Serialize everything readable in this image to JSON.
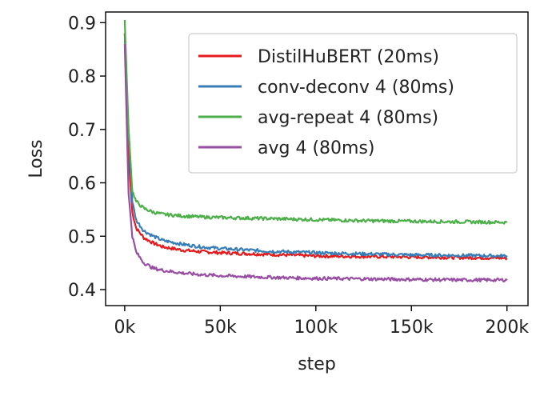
{
  "chart_data": {
    "type": "line",
    "title": "",
    "xlabel": "step",
    "ylabel": "Loss",
    "xlim": [
      -10000,
      211000
    ],
    "ylim": [
      0.37,
      0.92
    ],
    "x_ticks": [
      0,
      50000,
      100000,
      150000,
      200000
    ],
    "x_tick_labels": [
      "0k",
      "50k",
      "100k",
      "150k",
      "200k"
    ],
    "y_ticks": [
      0.4,
      0.5,
      0.6,
      0.7,
      0.8,
      0.9
    ],
    "y_tick_labels": [
      "0.4",
      "0.5",
      "0.6",
      "0.7",
      "0.8",
      "0.9"
    ],
    "grid": false,
    "legend_position": "top-right",
    "series": [
      {
        "name": "DistilHuBERT (20ms)",
        "color": "#e41a1c",
        "x": [
          0,
          2000,
          4000,
          6000,
          10000,
          15000,
          20000,
          30000,
          40000,
          50000,
          75000,
          100000,
          125000,
          150000,
          175000,
          200000
        ],
        "y": [
          0.88,
          0.65,
          0.545,
          0.515,
          0.497,
          0.487,
          0.48,
          0.474,
          0.471,
          0.469,
          0.466,
          0.463,
          0.462,
          0.461,
          0.46,
          0.459
        ]
      },
      {
        "name": "conv-deconv 4 (80ms)",
        "color": "#377eb8",
        "x": [
          0,
          2000,
          4000,
          6000,
          10000,
          15000,
          20000,
          30000,
          40000,
          50000,
          75000,
          100000,
          125000,
          150000,
          175000,
          200000
        ],
        "y": [
          0.88,
          0.7,
          0.565,
          0.53,
          0.51,
          0.5,
          0.492,
          0.485,
          0.48,
          0.477,
          0.472,
          0.469,
          0.467,
          0.465,
          0.464,
          0.463
        ]
      },
      {
        "name": "avg-repeat 4 (80ms)",
        "color": "#4daf4a",
        "x": [
          0,
          2000,
          4000,
          6000,
          10000,
          15000,
          20000,
          30000,
          40000,
          50000,
          75000,
          100000,
          125000,
          150000,
          175000,
          200000
        ],
        "y": [
          0.905,
          0.7,
          0.585,
          0.565,
          0.552,
          0.545,
          0.541,
          0.538,
          0.536,
          0.535,
          0.533,
          0.531,
          0.529,
          0.528,
          0.527,
          0.526
        ]
      },
      {
        "name": "avg 4 (80ms)",
        "color": "#984ea3",
        "x": [
          0,
          2000,
          4000,
          6000,
          10000,
          15000,
          20000,
          30000,
          40000,
          50000,
          75000,
          100000,
          125000,
          150000,
          175000,
          200000
        ],
        "y": [
          0.86,
          0.58,
          0.5,
          0.47,
          0.45,
          0.44,
          0.436,
          0.431,
          0.428,
          0.426,
          0.423,
          0.421,
          0.42,
          0.419,
          0.418,
          0.418
        ]
      }
    ]
  }
}
